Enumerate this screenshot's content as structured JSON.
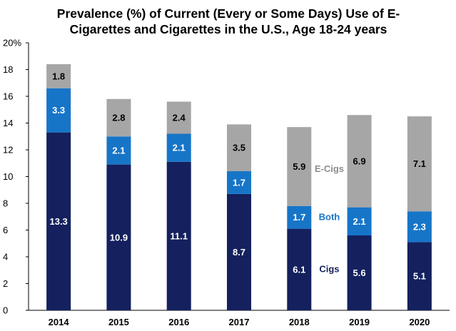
{
  "chart_data": {
    "type": "bar",
    "stacked": true,
    "title": "Prevalence (%) of Current (Every or Some Days) Use of E-\nCigarettes and Cigarettes in the U.S., Age 18-24 years",
    "categories": [
      "2014",
      "2015",
      "2016",
      "2017",
      "2018",
      "2019",
      "2020"
    ],
    "series": [
      {
        "name": "Cigs",
        "values": [
          13.3,
          10.9,
          11.1,
          8.7,
          6.1,
          5.6,
          5.1
        ],
        "color": "#14215e",
        "label_color": "#ffffff"
      },
      {
        "name": "Both",
        "values": [
          3.3,
          2.1,
          2.1,
          1.7,
          1.7,
          2.1,
          2.3
        ],
        "color": "#1775c8",
        "label_color": "#ffffff"
      },
      {
        "name": "E-Cigs",
        "values": [
          1.8,
          2.8,
          2.4,
          3.5,
          5.9,
          6.9,
          7.1
        ],
        "color": "#a6a6a6",
        "label_color": "#000000"
      }
    ],
    "yticks": [
      "0",
      "2",
      "4",
      "6",
      "8",
      "10",
      "12",
      "14",
      "16",
      "18",
      "20%"
    ],
    "ylim": [
      0,
      20
    ],
    "grid": false,
    "legend": "inline labels between 2018 and 2019 bars",
    "annotations": [
      {
        "text": "E-Cigs",
        "color": "#8c8c8c",
        "y": 10.6
      },
      {
        "text": "Both",
        "color": "#1775c8",
        "y": 7.0
      },
      {
        "text": "Cigs",
        "color": "#14215e",
        "y": 3.1
      }
    ]
  }
}
